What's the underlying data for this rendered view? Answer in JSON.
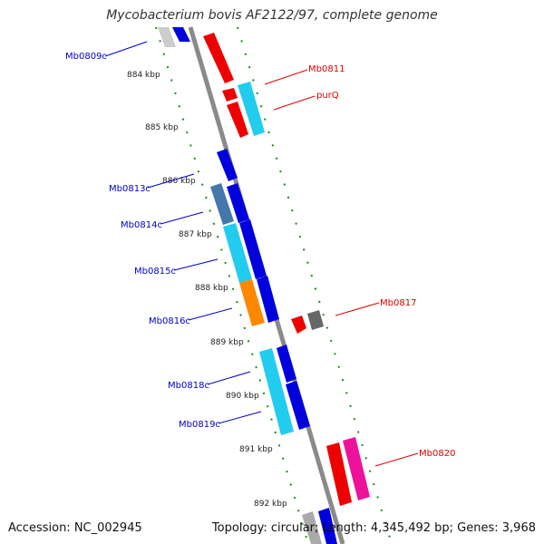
{
  "title": "Mycobacterium bovis AF2122/97, complete genome",
  "footer": {
    "accession": "Accession: NC_002945",
    "stats": "Topology: circular; Length: 4,345,492 bp; Genes: 3,968"
  },
  "ticks": [
    "884 kbp",
    "885 kbp",
    "886 kbp",
    "887 kbp",
    "888 kbp",
    "889 kbp",
    "890 kbp",
    "891 kbp",
    "892 kbp"
  ],
  "forward_labels": [
    "Mb0811",
    "purQ",
    "Mb0817",
    "Mb0820"
  ],
  "reverse_labels": [
    "Mb0809c",
    "Mb0813c",
    "Mb0814c",
    "Mb0815c",
    "Mb0816c",
    "Mb0818c",
    "Mb0819c"
  ],
  "colors": {
    "backbone": "#8a8a8a",
    "tick_green": "#1a8a1a",
    "forward_label": "#dd0000",
    "reverse_label": "#0000cc",
    "red": "#ee0000",
    "cyan": "#22ccee",
    "blue": "#0000dd",
    "steelblue": "#4477aa",
    "orange": "#ff8800",
    "magenta": "#ee1199",
    "gray": "#666666",
    "light_gray": "#cccccc"
  }
}
